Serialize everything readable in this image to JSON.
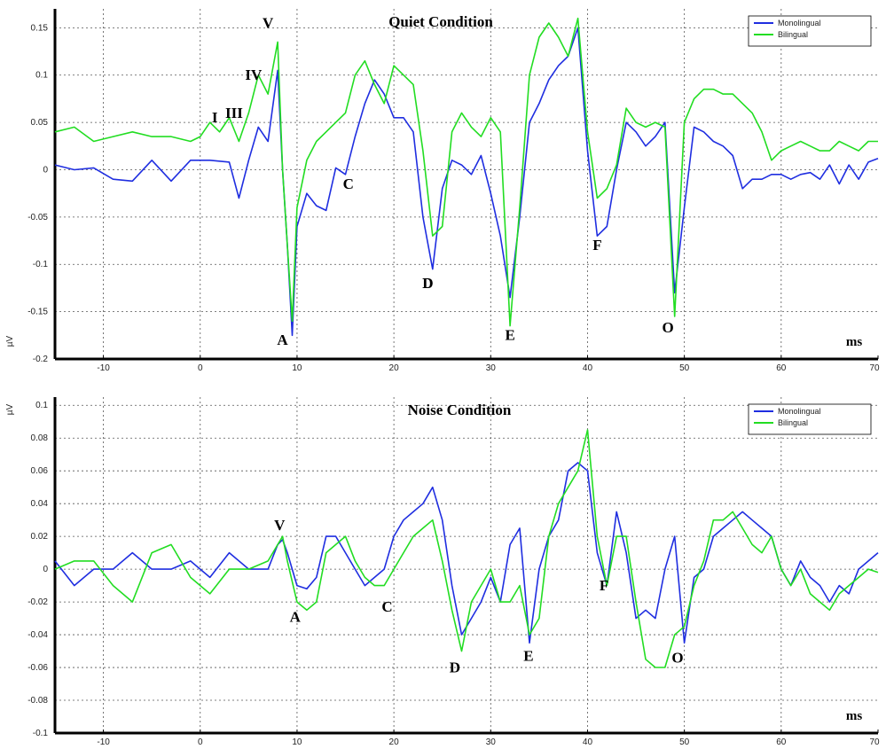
{
  "colors": {
    "monolingual": "#1f2ee0",
    "bilingual": "#22dd22"
  },
  "chart_data": [
    {
      "type": "line",
      "title": "Quiet Condition",
      "xlabel": "ms",
      "ylabel": "µV",
      "xlim": [
        -15,
        70
      ],
      "ylim": [
        -0.2,
        0.17
      ],
      "xticks": [
        -10,
        0,
        10,
        20,
        30,
        40,
        50,
        60,
        70
      ],
      "yticks": [
        -0.2,
        -0.15,
        -0.1,
        -0.05,
        0,
        0.05,
        0.1,
        0.15
      ],
      "grid": true,
      "legend": "top-right",
      "series": [
        {
          "name": "Monolingual",
          "x": [
            -15,
            -13,
            -11,
            -9,
            -7,
            -5,
            -3,
            -1,
            1,
            3,
            4,
            5,
            6,
            7,
            8,
            8.5,
            9,
            9.5,
            10,
            11,
            12,
            13,
            14,
            15,
            16,
            17,
            18,
            19,
            20,
            21,
            22,
            23,
            24,
            25,
            26,
            27,
            28,
            29,
            30,
            31,
            32,
            33,
            34,
            35,
            36,
            37,
            38,
            39,
            40,
            41,
            42,
            43,
            44,
            45,
            46,
            47,
            48,
            49,
            50,
            51,
            52,
            53,
            54,
            55,
            56,
            57,
            58,
            59,
            60,
            61,
            62,
            63,
            64,
            65,
            66,
            67,
            68,
            69,
            70
          ],
          "y": [
            0.005,
            0.0,
            0.002,
            -0.01,
            -0.012,
            0.01,
            -0.012,
            0.01,
            0.01,
            0.008,
            -0.03,
            0.01,
            0.045,
            0.03,
            0.105,
            0.0,
            -0.08,
            -0.175,
            -0.06,
            -0.025,
            -0.038,
            -0.043,
            0.002,
            -0.005,
            0.035,
            0.07,
            0.095,
            0.08,
            0.055,
            0.055,
            0.04,
            -0.05,
            -0.105,
            -0.02,
            0.01,
            0.005,
            -0.005,
            0.015,
            -0.025,
            -0.07,
            -0.135,
            -0.05,
            0.05,
            0.07,
            0.095,
            0.11,
            0.12,
            0.15,
            0.02,
            -0.07,
            -0.06,
            0.0,
            0.05,
            0.04,
            0.025,
            0.035,
            0.05,
            -0.13,
            -0.04,
            0.045,
            0.04,
            0.03,
            0.025,
            0.015,
            -0.02,
            -0.01,
            -0.01,
            -0.005,
            -0.005,
            -0.01,
            -0.005,
            -0.003,
            -0.01,
            0.005,
            -0.015,
            0.005,
            -0.01,
            0.008,
            0.012
          ]
        },
        {
          "name": "Bilingual",
          "x": [
            -15,
            -13,
            -11,
            -9,
            -7,
            -5,
            -3,
            -1,
            0,
            1,
            2,
            3,
            4,
            5,
            6,
            7,
            8,
            8.5,
            9,
            9.5,
            10,
            11,
            12,
            13,
            14,
            15,
            16,
            17,
            18,
            19,
            20,
            21,
            22,
            23,
            24,
            25,
            26,
            27,
            28,
            29,
            30,
            31,
            32,
            33,
            34,
            35,
            36,
            37,
            38,
            39,
            40,
            41,
            42,
            43,
            44,
            45,
            46,
            47,
            48,
            49,
            50,
            51,
            52,
            53,
            54,
            55,
            56,
            57,
            58,
            59,
            60,
            61,
            62,
            63,
            64,
            65,
            66,
            67,
            68,
            69,
            70
          ],
          "y": [
            0.04,
            0.045,
            0.03,
            0.035,
            0.04,
            0.035,
            0.035,
            0.03,
            0.035,
            0.05,
            0.04,
            0.055,
            0.03,
            0.06,
            0.1,
            0.08,
            0.135,
            0.0,
            -0.08,
            -0.16,
            -0.04,
            0.01,
            0.03,
            0.04,
            0.05,
            0.06,
            0.1,
            0.115,
            0.09,
            0.07,
            0.11,
            0.1,
            0.09,
            0.02,
            -0.07,
            -0.06,
            0.04,
            0.06,
            0.045,
            0.035,
            0.055,
            0.04,
            -0.165,
            -0.04,
            0.1,
            0.14,
            0.155,
            0.14,
            0.12,
            0.16,
            0.04,
            -0.03,
            -0.02,
            0.005,
            0.065,
            0.05,
            0.045,
            0.05,
            0.045,
            -0.155,
            0.05,
            0.075,
            0.085,
            0.085,
            0.08,
            0.08,
            0.07,
            0.06,
            0.04,
            0.01,
            0.02,
            0.025,
            0.03,
            0.025,
            0.02,
            0.02,
            0.03,
            0.025,
            0.02,
            0.03,
            0.03
          ]
        }
      ],
      "annotations": [
        {
          "text": "I",
          "x": 1.5,
          "y": 0.05
        },
        {
          "text": "III",
          "x": 3.5,
          "y": 0.055
        },
        {
          "text": "IV",
          "x": 5.5,
          "y": 0.095
        },
        {
          "text": "V",
          "x": 7,
          "y": 0.15
        },
        {
          "text": "A",
          "x": 8.5,
          "y": -0.185
        },
        {
          "text": "C",
          "x": 15.3,
          "y": -0.02
        },
        {
          "text": "D",
          "x": 23.5,
          "y": -0.125
        },
        {
          "text": "D",
          "x": 23.5,
          "y": -0.125
        },
        {
          "text": "E",
          "x": 32,
          "y": -0.18
        },
        {
          "text": "F",
          "x": 41,
          "y": -0.085
        },
        {
          "text": "O",
          "x": 48.3,
          "y": -0.172
        }
      ]
    },
    {
      "type": "line",
      "title": "Noise Condition",
      "xlabel": "ms",
      "ylabel": "µV",
      "xlim": [
        -15,
        70
      ],
      "ylim": [
        -0.1,
        0.105
      ],
      "xticks": [
        -10,
        0,
        10,
        20,
        30,
        40,
        50,
        60,
        70
      ],
      "yticks": [
        -0.1,
        -0.08,
        -0.06,
        -0.04,
        -0.02,
        0,
        0.02,
        0.04,
        0.06,
        0.08,
        0.1
      ],
      "grid": true,
      "legend": "top-right",
      "series": [
        {
          "name": "Monolingual",
          "x": [
            -15,
            -13,
            -11,
            -9,
            -7,
            -5,
            -3,
            -1,
            1,
            3,
            5,
            7,
            8,
            8.5,
            9,
            10,
            11,
            12,
            13,
            14,
            15,
            16,
            17,
            18,
            19,
            20,
            21,
            22,
            23,
            24,
            25,
            26,
            27,
            28,
            29,
            30,
            31,
            32,
            33,
            34,
            35,
            36,
            37,
            38,
            39,
            40,
            41,
            42,
            43,
            44,
            45,
            46,
            47,
            48,
            49,
            50,
            51,
            52,
            53,
            54,
            55,
            56,
            57,
            58,
            59,
            60,
            61,
            62,
            63,
            64,
            65,
            66,
            67,
            68,
            69,
            70
          ],
          "y": [
            0.005,
            -0.01,
            0.0,
            0.0,
            0.01,
            0.0,
            0.0,
            0.005,
            -0.005,
            0.01,
            0.0,
            0.0,
            0.015,
            0.018,
            0.01,
            -0.01,
            -0.012,
            -0.005,
            0.02,
            0.02,
            0.01,
            0.0,
            -0.01,
            -0.005,
            0.0,
            0.02,
            0.03,
            0.035,
            0.04,
            0.05,
            0.03,
            -0.01,
            -0.04,
            -0.03,
            -0.02,
            -0.005,
            -0.02,
            0.015,
            0.025,
            -0.045,
            0.0,
            0.02,
            0.03,
            0.06,
            0.065,
            0.06,
            0.01,
            -0.01,
            0.035,
            0.01,
            -0.03,
            -0.025,
            -0.03,
            0.0,
            0.02,
            -0.045,
            -0.005,
            0.0,
            0.02,
            0.025,
            0.03,
            0.035,
            0.03,
            0.025,
            0.02,
            0.0,
            -0.01,
            0.005,
            -0.005,
            -0.01,
            -0.02,
            -0.01,
            -0.015,
            0.0,
            0.005,
            0.01
          ]
        },
        {
          "name": "Bilingual",
          "x": [
            -15,
            -13,
            -11,
            -9,
            -7,
            -5,
            -3,
            -1,
            1,
            3,
            5,
            7,
            8,
            8.5,
            9,
            10,
            11,
            12,
            13,
            14,
            15,
            16,
            17,
            18,
            19,
            20,
            21,
            22,
            23,
            24,
            25,
            26,
            27,
            28,
            29,
            30,
            31,
            32,
            33,
            34,
            35,
            36,
            37,
            38,
            39,
            40,
            41,
            42,
            43,
            44,
            45,
            46,
            47,
            48,
            49,
            50,
            51,
            52,
            53,
            54,
            55,
            56,
            57,
            58,
            59,
            60,
            61,
            62,
            63,
            64,
            65,
            66,
            67,
            68,
            69,
            70
          ],
          "y": [
            0.0,
            0.005,
            0.005,
            -0.01,
            -0.02,
            0.01,
            0.015,
            -0.005,
            -0.015,
            0.0,
            0.0,
            0.005,
            0.015,
            0.02,
            0.005,
            -0.02,
            -0.025,
            -0.02,
            0.01,
            0.015,
            0.02,
            0.005,
            -0.005,
            -0.01,
            -0.01,
            0.0,
            0.01,
            0.02,
            0.025,
            0.03,
            0.005,
            -0.025,
            -0.05,
            -0.02,
            -0.01,
            0.0,
            -0.02,
            -0.02,
            -0.01,
            -0.04,
            -0.03,
            0.02,
            0.04,
            0.05,
            0.06,
            0.085,
            0.02,
            -0.01,
            0.02,
            0.02,
            -0.02,
            -0.055,
            -0.06,
            -0.06,
            -0.04,
            -0.035,
            -0.01,
            0.005,
            0.03,
            0.03,
            0.035,
            0.025,
            0.015,
            0.01,
            0.02,
            0.0,
            -0.01,
            0.0,
            -0.015,
            -0.02,
            -0.025,
            -0.015,
            -0.01,
            -0.005,
            0.0,
            -0.002
          ]
        }
      ],
      "annotations": [
        {
          "text": "V",
          "x": 8.2,
          "y": 0.024
        },
        {
          "text": "A",
          "x": 9.8,
          "y": -0.032
        },
        {
          "text": "C",
          "x": 19.3,
          "y": -0.026
        },
        {
          "text": "D",
          "x": 26.3,
          "y": -0.063
        },
        {
          "text": "E",
          "x": 33.9,
          "y": -0.056
        },
        {
          "text": "F",
          "x": 41.7,
          "y": -0.013
        },
        {
          "text": "O",
          "x": 49.3,
          "y": -0.057
        }
      ]
    }
  ]
}
